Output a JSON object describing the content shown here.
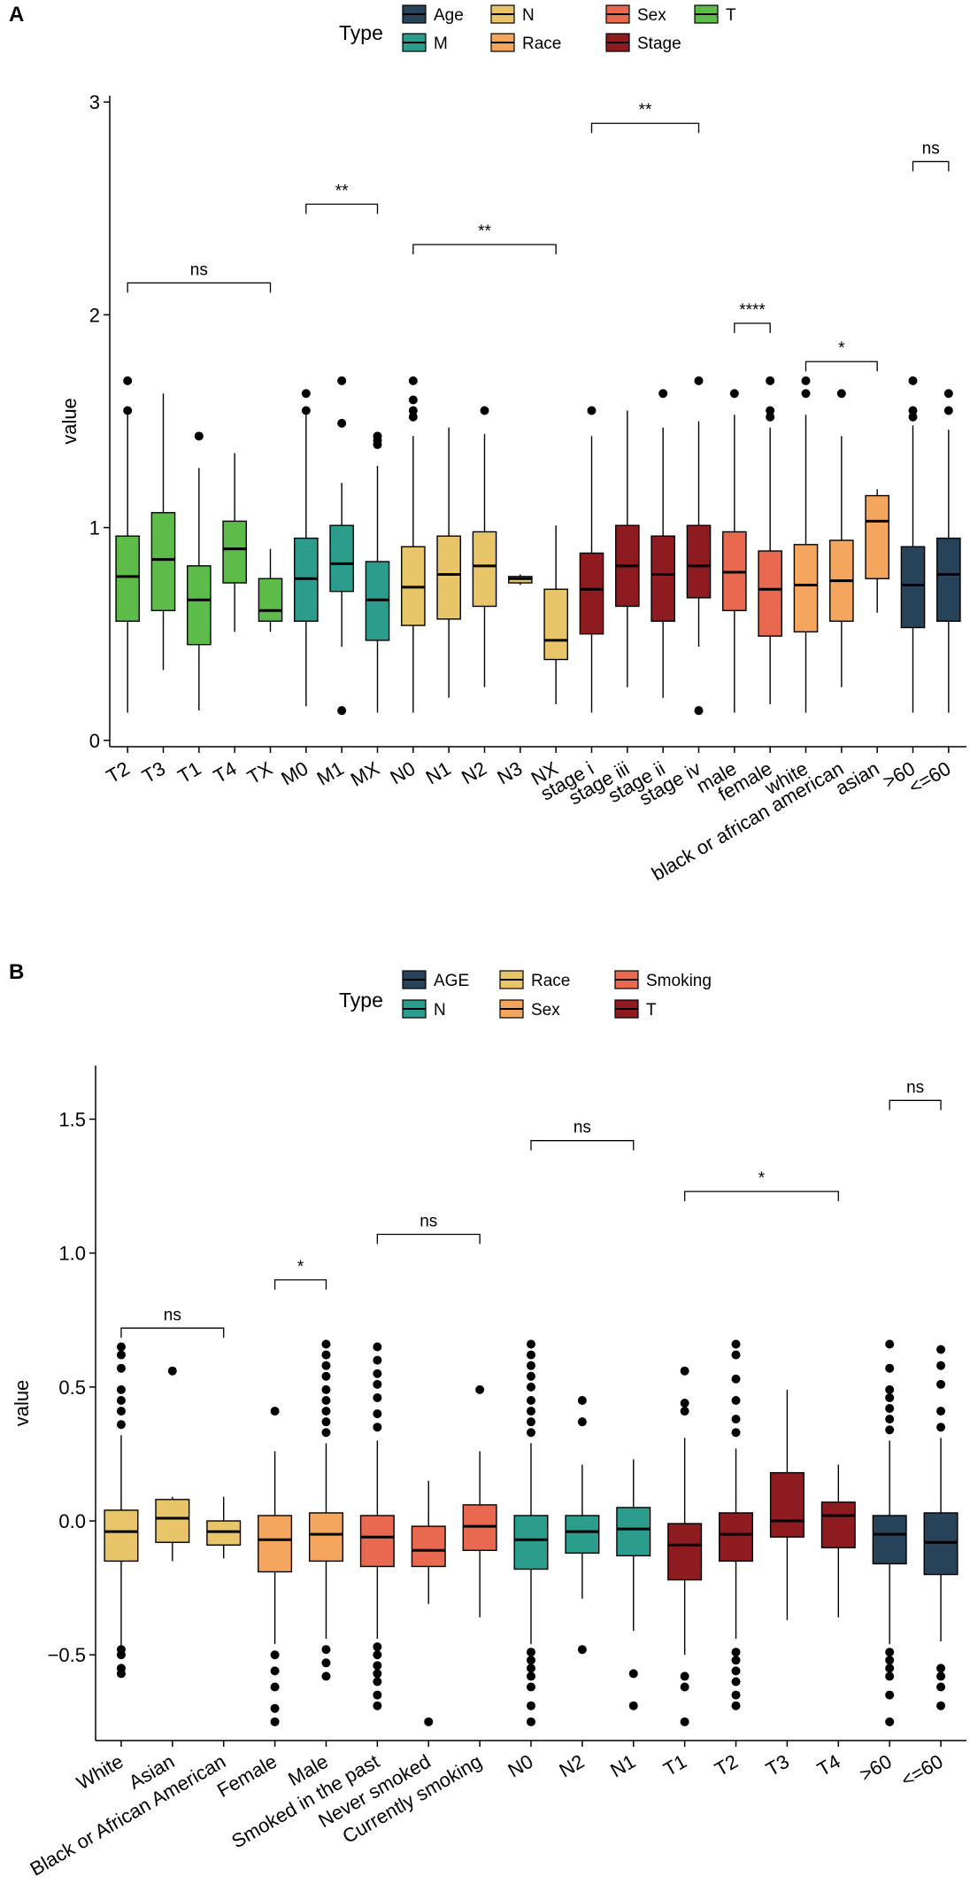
{
  "chart_data": [
    {
      "type": "boxplot",
      "panel_label": "A",
      "legend_title": "Type",
      "legend": [
        {
          "name": "Age",
          "color": "#26435A"
        },
        {
          "name": "M",
          "color": "#2C9C8C"
        },
        {
          "name": "N",
          "color": "#E9C56A"
        },
        {
          "name": "Race",
          "color": "#F4A65E"
        },
        {
          "name": "Sex",
          "color": "#E8694F"
        },
        {
          "name": "Stage",
          "color": "#8E1B1F"
        },
        {
          "name": "T",
          "color": "#5DBB4A"
        }
      ],
      "ylabel": "value",
      "ylim": [
        -0.03,
        3.03
      ],
      "yticks": [
        0,
        1,
        2,
        3
      ],
      "yticklabels": [
        "0",
        "1",
        "2",
        "3"
      ],
      "categories": [
        "T2",
        "T3",
        "T1",
        "T4",
        "TX",
        "M0",
        "M1",
        "MX",
        "N0",
        "N1",
        "N2",
        "N3",
        "NX",
        "stage i",
        "stage iii",
        "stage ii",
        "stage iv",
        "male",
        "female",
        "white",
        "black or african american",
        "asian",
        ">60",
        "<=60"
      ],
      "boxes": [
        {
          "label": "T2",
          "group": "T",
          "whislo": 0.13,
          "q1": 0.56,
          "med": 0.77,
          "q3": 0.96,
          "whishi": 1.53,
          "fliers": [
            1.55,
            1.69
          ]
        },
        {
          "label": "T3",
          "group": "T",
          "whislo": 0.33,
          "q1": 0.61,
          "med": 0.85,
          "q3": 1.07,
          "whishi": 1.63,
          "fliers": []
        },
        {
          "label": "T1",
          "group": "T",
          "whislo": 0.14,
          "q1": 0.45,
          "med": 0.66,
          "q3": 0.82,
          "whishi": 1.28,
          "fliers": [
            1.43
          ]
        },
        {
          "label": "T4",
          "group": "T",
          "whislo": 0.51,
          "q1": 0.74,
          "med": 0.9,
          "q3": 1.03,
          "whishi": 1.35,
          "fliers": []
        },
        {
          "label": "TX",
          "group": "T",
          "whislo": 0.51,
          "q1": 0.56,
          "med": 0.61,
          "q3": 0.76,
          "whishi": 0.9,
          "fliers": []
        },
        {
          "label": "M0",
          "group": "M",
          "whislo": 0.16,
          "q1": 0.56,
          "med": 0.76,
          "q3": 0.95,
          "whishi": 1.53,
          "fliers": [
            1.55,
            1.63
          ]
        },
        {
          "label": "M1",
          "group": "M",
          "whislo": 0.44,
          "q1": 0.7,
          "med": 0.83,
          "q3": 1.01,
          "whishi": 1.21,
          "fliers": [
            0.14,
            1.49,
            1.69
          ]
        },
        {
          "label": "MX",
          "group": "M",
          "whislo": 0.13,
          "q1": 0.47,
          "med": 0.66,
          "q3": 0.84,
          "whishi": 1.29,
          "fliers": [
            1.39,
            1.41,
            1.43
          ]
        },
        {
          "label": "N0",
          "group": "N",
          "whislo": 0.13,
          "q1": 0.54,
          "med": 0.72,
          "q3": 0.91,
          "whishi": 1.43,
          "fliers": [
            1.52,
            1.55,
            1.6,
            1.69
          ]
        },
        {
          "label": "N1",
          "group": "N",
          "whislo": 0.2,
          "q1": 0.57,
          "med": 0.78,
          "q3": 0.96,
          "whishi": 1.47,
          "fliers": []
        },
        {
          "label": "N2",
          "group": "N",
          "whislo": 0.25,
          "q1": 0.63,
          "med": 0.82,
          "q3": 0.98,
          "whishi": 1.44,
          "fliers": [
            1.55
          ]
        },
        {
          "label": "N3",
          "group": "N",
          "whislo": 0.73,
          "q1": 0.74,
          "med": 0.76,
          "q3": 0.77,
          "whishi": 0.78,
          "fliers": []
        },
        {
          "label": "NX",
          "group": "N",
          "whislo": 0.17,
          "q1": 0.38,
          "med": 0.47,
          "q3": 0.71,
          "whishi": 1.01,
          "fliers": []
        },
        {
          "label": "stage i",
          "group": "Stage",
          "whislo": 0.13,
          "q1": 0.5,
          "med": 0.71,
          "q3": 0.88,
          "whishi": 1.43,
          "fliers": [
            1.55
          ]
        },
        {
          "label": "stage iii",
          "group": "Stage",
          "whislo": 0.25,
          "q1": 0.63,
          "med": 0.82,
          "q3": 1.01,
          "whishi": 1.55,
          "fliers": []
        },
        {
          "label": "stage ii",
          "group": "Stage",
          "whislo": 0.2,
          "q1": 0.56,
          "med": 0.78,
          "q3": 0.96,
          "whishi": 1.47,
          "fliers": [
            1.63
          ]
        },
        {
          "label": "stage iv",
          "group": "Stage",
          "whislo": 0.44,
          "q1": 0.67,
          "med": 0.82,
          "q3": 1.01,
          "whishi": 1.5,
          "fliers": [
            0.14,
            1.69
          ]
        },
        {
          "label": "male",
          "group": "Sex",
          "whislo": 0.13,
          "q1": 0.61,
          "med": 0.79,
          "q3": 0.98,
          "whishi": 1.53,
          "fliers": [
            1.63
          ]
        },
        {
          "label": "female",
          "group": "Sex",
          "whislo": 0.17,
          "q1": 0.49,
          "med": 0.71,
          "q3": 0.89,
          "whishi": 1.47,
          "fliers": [
            1.52,
            1.55,
            1.69
          ]
        },
        {
          "label": "white",
          "group": "Race",
          "whislo": 0.13,
          "q1": 0.51,
          "med": 0.73,
          "q3": 0.92,
          "whishi": 1.53,
          "fliers": [
            1.63,
            1.69
          ]
        },
        {
          "label": "black or african american",
          "group": "Race",
          "whislo": 0.25,
          "q1": 0.56,
          "med": 0.75,
          "q3": 0.94,
          "whishi": 1.43,
          "fliers": [
            1.63
          ]
        },
        {
          "label": "asian",
          "group": "Race",
          "whislo": 0.6,
          "q1": 0.76,
          "med": 1.03,
          "q3": 1.15,
          "whishi": 1.18,
          "fliers": []
        },
        {
          "label": ">60",
          "group": "Age",
          "whislo": 0.13,
          "q1": 0.53,
          "med": 0.73,
          "q3": 0.91,
          "whishi": 1.48,
          "fliers": [
            1.52,
            1.55,
            1.69
          ]
        },
        {
          "label": "<=60",
          "group": "Age",
          "whislo": 0.13,
          "q1": 0.56,
          "med": 0.78,
          "q3": 0.95,
          "whishi": 1.46,
          "fliers": [
            1.55,
            1.63
          ]
        }
      ],
      "annotations": [
        {
          "text": "ns",
          "from": "T2",
          "to": "TX",
          "y": 2.15
        },
        {
          "text": "**",
          "from": "M0",
          "to": "MX",
          "y": 2.52
        },
        {
          "text": "**",
          "from": "N0",
          "to": "NX",
          "y": 2.33
        },
        {
          "text": "**",
          "from": "stage i",
          "to": "stage iv",
          "y": 2.9
        },
        {
          "text": "****",
          "from": "male",
          "to": "female",
          "y": 1.96
        },
        {
          "text": "*",
          "from": "white",
          "to": "asian",
          "y": 1.78
        },
        {
          "text": "ns",
          "from": ">60",
          "to": "<=60",
          "y": 2.72
        }
      ]
    },
    {
      "type": "boxplot",
      "panel_label": "B",
      "legend_title": "Type",
      "legend": [
        {
          "name": "AGE",
          "color": "#26435A"
        },
        {
          "name": "N",
          "color": "#2C9C8C"
        },
        {
          "name": "Race",
          "color": "#E9C56A"
        },
        {
          "name": "Sex",
          "color": "#F4A65E"
        },
        {
          "name": "Smoking",
          "color": "#E8694F"
        },
        {
          "name": "T",
          "color": "#8E1B1F"
        }
      ],
      "ylabel": "value",
      "ylim": [
        -0.82,
        1.7
      ],
      "yticks": [
        -0.5,
        0.0,
        0.5,
        1.0,
        1.5
      ],
      "yticklabels": [
        "−0.5",
        "0.0",
        "0.5",
        "1.0",
        "1.5"
      ],
      "categories": [
        "White",
        "Asian",
        "Black or African American",
        "Female",
        "Male",
        "Smoked in the past",
        "Never smoked",
        "Currently smoking",
        "N0",
        "N2",
        "N1",
        "T1",
        "T2",
        "T3",
        "T4",
        ">60",
        "<=60"
      ],
      "boxes": [
        {
          "label": "White",
          "group": "Race",
          "whislo": -0.47,
          "q1": -0.15,
          "med": -0.04,
          "q3": 0.04,
          "whishi": 0.32,
          "fliers": [
            -0.57,
            -0.55,
            -0.5,
            -0.48,
            0.36,
            0.41,
            0.45,
            0.49,
            0.57,
            0.62,
            0.65
          ]
        },
        {
          "label": "Asian",
          "group": "Race",
          "whislo": -0.15,
          "q1": -0.08,
          "med": 0.01,
          "q3": 0.08,
          "whishi": 0.09,
          "fliers": [
            0.56
          ]
        },
        {
          "label": "Black or African American",
          "group": "Race",
          "whislo": -0.14,
          "q1": -0.09,
          "med": -0.04,
          "q3": -0.0,
          "whishi": 0.09,
          "fliers": []
        },
        {
          "label": "Female",
          "group": "Sex",
          "whislo": -0.46,
          "q1": -0.19,
          "med": -0.07,
          "q3": 0.02,
          "whishi": 0.26,
          "fliers": [
            -0.75,
            -0.7,
            -0.62,
            -0.56,
            -0.5,
            0.41
          ]
        },
        {
          "label": "Male",
          "group": "Sex",
          "whislo": -0.44,
          "q1": -0.15,
          "med": -0.05,
          "q3": 0.03,
          "whishi": 0.29,
          "fliers": [
            -0.58,
            -0.53,
            -0.48,
            0.33,
            0.37,
            0.41,
            0.45,
            0.49,
            0.54,
            0.58,
            0.62,
            0.66
          ]
        },
        {
          "label": "Smoked in the past",
          "group": "Smoking",
          "whislo": -0.44,
          "q1": -0.17,
          "med": -0.06,
          "q3": 0.02,
          "whishi": 0.3,
          "fliers": [
            -0.69,
            -0.65,
            -0.6,
            -0.57,
            -0.54,
            -0.5,
            -0.47,
            0.35,
            0.4,
            0.46,
            0.51,
            0.55,
            0.6,
            0.65
          ]
        },
        {
          "label": "Never smoked",
          "group": "Smoking",
          "whislo": -0.31,
          "q1": -0.17,
          "med": -0.11,
          "q3": -0.02,
          "whishi": 0.15,
          "fliers": [
            -0.75
          ]
        },
        {
          "label": "Currently smoking",
          "group": "Smoking",
          "whislo": -0.36,
          "q1": -0.11,
          "med": -0.02,
          "q3": 0.06,
          "whishi": 0.26,
          "fliers": [
            0.49
          ]
        },
        {
          "label": "N0",
          "group": "N",
          "whislo": -0.46,
          "q1": -0.18,
          "med": -0.07,
          "q3": 0.02,
          "whishi": 0.29,
          "fliers": [
            -0.75,
            -0.69,
            -0.62,
            -0.58,
            -0.55,
            -0.52,
            -0.49,
            0.33,
            0.37,
            0.41,
            0.45,
            0.5,
            0.54,
            0.58,
            0.62,
            0.66
          ]
        },
        {
          "label": "N2",
          "group": "N",
          "whislo": -0.29,
          "q1": -0.12,
          "med": -0.04,
          "q3": 0.02,
          "whishi": 0.21,
          "fliers": [
            -0.48,
            0.37,
            0.45
          ]
        },
        {
          "label": "N1",
          "group": "N",
          "whislo": -0.41,
          "q1": -0.13,
          "med": -0.03,
          "q3": 0.05,
          "whishi": 0.23,
          "fliers": [
            -0.69,
            -0.57
          ]
        },
        {
          "label": "T1",
          "group": "T",
          "whislo": -0.5,
          "q1": -0.22,
          "med": -0.09,
          "q3": -0.01,
          "whishi": 0.31,
          "fliers": [
            -0.75,
            -0.62,
            -0.58,
            0.41,
            0.44,
            0.56
          ]
        },
        {
          "label": "T2",
          "group": "T",
          "whislo": -0.44,
          "q1": -0.15,
          "med": -0.05,
          "q3": 0.03,
          "whishi": 0.27,
          "fliers": [
            -0.69,
            -0.65,
            -0.6,
            -0.56,
            -0.52,
            -0.49,
            0.33,
            0.38,
            0.45,
            0.53,
            0.62,
            0.66
          ]
        },
        {
          "label": "T3",
          "group": "T",
          "whislo": -0.37,
          "q1": -0.06,
          "med": 0.0,
          "q3": 0.18,
          "whishi": 0.49,
          "fliers": []
        },
        {
          "label": "T4",
          "group": "T",
          "whislo": -0.36,
          "q1": -0.1,
          "med": 0.02,
          "q3": 0.07,
          "whishi": 0.21,
          "fliers": []
        },
        {
          "label": ">60",
          "group": "AGE",
          "whislo": -0.46,
          "q1": -0.16,
          "med": -0.05,
          "q3": 0.02,
          "whishi": 0.3,
          "fliers": [
            -0.75,
            -0.65,
            -0.58,
            -0.55,
            -0.52,
            -0.49,
            0.34,
            0.38,
            0.42,
            0.46,
            0.49,
            0.57,
            0.66
          ]
        },
        {
          "label": "<=60",
          "group": "AGE",
          "whislo": -0.45,
          "q1": -0.2,
          "med": -0.08,
          "q3": 0.03,
          "whishi": 0.31,
          "fliers": [
            -0.69,
            -0.62,
            -0.58,
            -0.55,
            0.35,
            0.41,
            0.51,
            0.58,
            0.64
          ]
        }
      ],
      "annotations": [
        {
          "text": "ns",
          "from": "White",
          "to": "Black or African American",
          "y": 0.72
        },
        {
          "text": "*",
          "from": "Female",
          "to": "Male",
          "y": 0.9
        },
        {
          "text": "ns",
          "from": "Smoked in the past",
          "to": "Currently smoking",
          "y": 1.07
        },
        {
          "text": "ns",
          "from": "N0",
          "to": "N1",
          "y": 1.42
        },
        {
          "text": "*",
          "from": "T1",
          "to": "T4",
          "y": 1.23
        },
        {
          "text": "ns",
          "from": ">60",
          "to": "<=60",
          "y": 1.57
        }
      ]
    }
  ]
}
